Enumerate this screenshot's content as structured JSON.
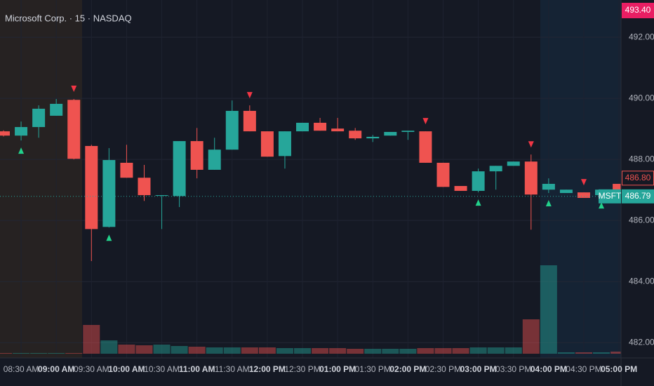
{
  "chart_data": {
    "type": "candlestick",
    "title": "Microsoft Corp. · 15 · NASDAQ",
    "symbol": "MSFT",
    "categories": [
      null,
      "08:30 AM",
      null,
      "09:00 AM",
      null,
      "09:30 AM",
      null,
      "10:00 AM",
      null,
      "10:30 AM",
      null,
      "11:00 AM",
      null,
      "11:30 AM",
      null,
      "12:00 PM",
      null,
      "12:30 PM",
      null,
      "01:00 PM",
      null,
      "01:30 PM",
      null,
      "02:00 PM",
      null,
      "02:30 PM",
      null,
      "03:00 PM",
      null,
      "03:30 PM",
      null,
      "04:00 PM",
      null,
      "04:30 PM",
      null,
      "05:00 PM"
    ],
    "open": [
      488.92,
      488.78,
      489.06,
      489.43,
      489.95,
      488.44,
      485.79,
      487.89,
      487.4,
      486.82,
      486.8,
      488.6,
      487.66,
      488.32,
      489.59,
      488.92,
      488.11,
      488.92,
      489.2,
      489.01,
      488.94,
      488.69,
      488.78,
      488.9,
      488.92,
      487.89,
      487.13,
      486.97,
      487.61,
      487.79,
      487.93,
      487.01,
      486.9,
      486.92,
      486.83,
      487.2
    ],
    "high": [
      488.95,
      489.24,
      489.77,
      489.98,
      489.98,
      488.48,
      488.37,
      488.48,
      487.82,
      486.83,
      488.6,
      489.03,
      488.71,
      489.93,
      489.77,
      488.92,
      488.92,
      489.2,
      489.36,
      489.36,
      489.03,
      488.8,
      488.9,
      488.94,
      488.92,
      487.89,
      487.13,
      487.7,
      487.79,
      487.93,
      488.16,
      487.38,
      487.01,
      486.92,
      487.01,
      487.2
    ],
    "low": [
      488.75,
      488.62,
      488.71,
      489.43,
      488.0,
      484.67,
      485.77,
      487.4,
      486.64,
      485.72,
      486.44,
      487.38,
      487.66,
      488.32,
      488.92,
      488.09,
      487.7,
      488.92,
      488.94,
      488.92,
      488.64,
      488.57,
      488.78,
      488.64,
      487.89,
      487.1,
      486.97,
      486.92,
      487.01,
      487.79,
      485.7,
      486.9,
      486.9,
      486.74,
      486.83,
      487.01
    ],
    "close": [
      488.78,
      489.06,
      489.66,
      489.82,
      488.02,
      485.72,
      487.98,
      487.4,
      486.83,
      486.83,
      488.6,
      487.66,
      488.32,
      489.59,
      488.92,
      488.09,
      488.92,
      489.2,
      488.94,
      488.92,
      488.69,
      488.74,
      488.9,
      488.94,
      487.89,
      487.1,
      486.97,
      487.61,
      487.79,
      487.93,
      486.85,
      487.2,
      487.01,
      486.74,
      487.01,
      487.01
    ],
    "volume": [
      1,
      1,
      1,
      1,
      1,
      41,
      19,
      13,
      12,
      13,
      11,
      10,
      9,
      9,
      9,
      9,
      8,
      8,
      8,
      8,
      7,
      7,
      7,
      7,
      8,
      8,
      8,
      9,
      9,
      9,
      49,
      126,
      2,
      2,
      2,
      3
    ],
    "buy_signals": [
      1,
      6,
      27,
      31,
      34
    ],
    "sell_signals": [
      4,
      14,
      24,
      30,
      33
    ],
    "up_color": "#26a69a",
    "down_color": "#ef5350",
    "ylim": [
      481.5,
      493.22
    ],
    "yticks": [
      {
        "value": 482,
        "label": "482.00"
      },
      {
        "value": 484,
        "label": "484.00"
      },
      {
        "value": 486,
        "label": "486.00"
      },
      {
        "value": 488,
        "label": "488.00"
      },
      {
        "value": 490,
        "label": "490.00"
      },
      {
        "value": 492,
        "label": "492.00"
      }
    ],
    "last_price": {
      "value": 486.79,
      "label": "486.79"
    },
    "prev_close": {
      "value": 486.8,
      "label": "486.80"
    },
    "session_high": {
      "value": 493.4,
      "label": "493.40"
    },
    "grid": true
  }
}
